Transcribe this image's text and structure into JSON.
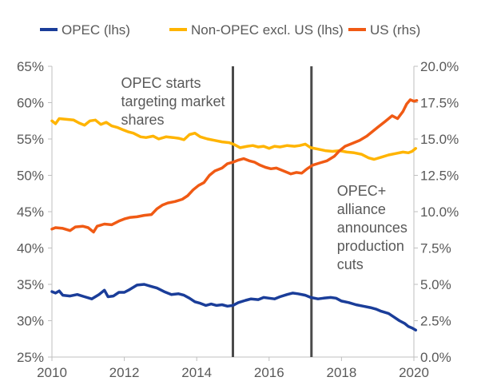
{
  "chart_data": {
    "type": "line",
    "title": "",
    "xlabel": "",
    "ylabel": "",
    "y2label": "",
    "xlim": [
      2010,
      2020
    ],
    "ylim": [
      0.25,
      0.65
    ],
    "y2lim": [
      0.0,
      0.2
    ],
    "grid": false,
    "legend_position": "top",
    "x_ticks": [
      2010,
      2012,
      2014,
      2016,
      2018,
      2020
    ],
    "x_tick_labels": [
      "2010",
      "2012",
      "2014",
      "2016",
      "2018",
      "2020"
    ],
    "y_ticks": [
      0.25,
      0.3,
      0.35,
      0.4,
      0.45,
      0.5,
      0.55,
      0.6,
      0.65
    ],
    "y_tick_labels": [
      "25%",
      "30%",
      "35%",
      "40%",
      "45%",
      "50%",
      "55%",
      "60%",
      "65%"
    ],
    "y2_ticks": [
      0.0,
      0.025,
      0.05,
      0.075,
      0.1,
      0.125,
      0.15,
      0.175,
      0.2
    ],
    "y2_tick_labels": [
      "0.0%",
      "2.5%",
      "5.0%",
      "7.5%",
      "10.0%",
      "12.5%",
      "15.0%",
      "17.5%",
      "20.0%"
    ],
    "vlines": [
      {
        "x": 2015.0,
        "color": "#4a4a4a"
      },
      {
        "x": 2017.17,
        "color": "#4a4a4a"
      }
    ],
    "annotations": [
      {
        "lines": [
          "OPEC starts",
          "targeting market",
          "shares"
        ],
        "anchor_x": 2015.0,
        "side": "left"
      },
      {
        "lines": [
          "OPEC+",
          "alliance",
          "announces",
          "production",
          "cuts"
        ],
        "anchor_x": 2017.17,
        "side": "right"
      }
    ],
    "series": [
      {
        "name": "OPEC (lhs)",
        "color": "#1a3d99",
        "axis": "left",
        "points": [
          [
            2010.0,
            0.34
          ],
          [
            2010.1,
            0.338
          ],
          [
            2010.2,
            0.341
          ],
          [
            2010.3,
            0.335
          ],
          [
            2010.5,
            0.334
          ],
          [
            2010.7,
            0.336
          ],
          [
            2010.9,
            0.333
          ],
          [
            2011.1,
            0.33
          ],
          [
            2011.3,
            0.336
          ],
          [
            2011.45,
            0.342
          ],
          [
            2011.55,
            0.333
          ],
          [
            2011.7,
            0.334
          ],
          [
            2011.85,
            0.339
          ],
          [
            2012.0,
            0.339
          ],
          [
            2012.15,
            0.343
          ],
          [
            2012.35,
            0.349
          ],
          [
            2012.55,
            0.35
          ],
          [
            2012.75,
            0.347
          ],
          [
            2012.9,
            0.345
          ],
          [
            2013.1,
            0.34
          ],
          [
            2013.3,
            0.336
          ],
          [
            2013.5,
            0.337
          ],
          [
            2013.65,
            0.335
          ],
          [
            2013.8,
            0.331
          ],
          [
            2013.95,
            0.326
          ],
          [
            2014.1,
            0.324
          ],
          [
            2014.25,
            0.321
          ],
          [
            2014.4,
            0.323
          ],
          [
            2014.55,
            0.321
          ],
          [
            2014.7,
            0.322
          ],
          [
            2014.85,
            0.32
          ],
          [
            2015.0,
            0.321
          ],
          [
            2015.15,
            0.325
          ],
          [
            2015.35,
            0.328
          ],
          [
            2015.5,
            0.33
          ],
          [
            2015.7,
            0.329
          ],
          [
            2015.85,
            0.332
          ],
          [
            2016.0,
            0.331
          ],
          [
            2016.15,
            0.33
          ],
          [
            2016.3,
            0.333
          ],
          [
            2016.5,
            0.336
          ],
          [
            2016.65,
            0.338
          ],
          [
            2016.8,
            0.337
          ],
          [
            2017.0,
            0.335
          ],
          [
            2017.15,
            0.332
          ],
          [
            2017.35,
            0.33
          ],
          [
            2017.5,
            0.331
          ],
          [
            2017.7,
            0.332
          ],
          [
            2017.85,
            0.331
          ],
          [
            2018.0,
            0.327
          ],
          [
            2018.2,
            0.325
          ],
          [
            2018.4,
            0.322
          ],
          [
            2018.6,
            0.32
          ],
          [
            2018.8,
            0.318
          ],
          [
            2018.95,
            0.316
          ],
          [
            2019.1,
            0.313
          ],
          [
            2019.3,
            0.31
          ],
          [
            2019.45,
            0.305
          ],
          [
            2019.6,
            0.3
          ],
          [
            2019.75,
            0.296
          ],
          [
            2019.85,
            0.292
          ],
          [
            2019.95,
            0.29
          ],
          [
            2020.05,
            0.287
          ]
        ]
      },
      {
        "name": "Non-OPEC excl. US (lhs)",
        "color": "#ffb400",
        "axis": "left",
        "points": [
          [
            2010.0,
            0.575
          ],
          [
            2010.1,
            0.571
          ],
          [
            2010.2,
            0.578
          ],
          [
            2010.4,
            0.577
          ],
          [
            2010.6,
            0.576
          ],
          [
            2010.75,
            0.572
          ],
          [
            2010.9,
            0.569
          ],
          [
            2011.05,
            0.575
          ],
          [
            2011.2,
            0.576
          ],
          [
            2011.35,
            0.57
          ],
          [
            2011.5,
            0.573
          ],
          [
            2011.65,
            0.568
          ],
          [
            2011.8,
            0.566
          ],
          [
            2011.95,
            0.563
          ],
          [
            2012.1,
            0.56
          ],
          [
            2012.25,
            0.558
          ],
          [
            2012.45,
            0.553
          ],
          [
            2012.6,
            0.552
          ],
          [
            2012.8,
            0.554
          ],
          [
            2012.95,
            0.55
          ],
          [
            2013.15,
            0.553
          ],
          [
            2013.35,
            0.552
          ],
          [
            2013.5,
            0.551
          ],
          [
            2013.65,
            0.549
          ],
          [
            2013.8,
            0.556
          ],
          [
            2013.95,
            0.558
          ],
          [
            2014.1,
            0.553
          ],
          [
            2014.3,
            0.55
          ],
          [
            2014.5,
            0.548
          ],
          [
            2014.7,
            0.546
          ],
          [
            2014.9,
            0.545
          ],
          [
            2015.05,
            0.542
          ],
          [
            2015.2,
            0.538
          ],
          [
            2015.4,
            0.54
          ],
          [
            2015.55,
            0.541
          ],
          [
            2015.7,
            0.539
          ],
          [
            2015.85,
            0.54
          ],
          [
            2016.0,
            0.537
          ],
          [
            2016.15,
            0.54
          ],
          [
            2016.3,
            0.539
          ],
          [
            2016.5,
            0.541
          ],
          [
            2016.7,
            0.54
          ],
          [
            2016.85,
            0.541
          ],
          [
            2017.0,
            0.543
          ],
          [
            2017.15,
            0.538
          ],
          [
            2017.35,
            0.536
          ],
          [
            2017.55,
            0.534
          ],
          [
            2017.75,
            0.533
          ],
          [
            2017.95,
            0.534
          ],
          [
            2018.15,
            0.532
          ],
          [
            2018.35,
            0.531
          ],
          [
            2018.55,
            0.529
          ],
          [
            2018.75,
            0.524
          ],
          [
            2018.9,
            0.522
          ],
          [
            2019.1,
            0.525
          ],
          [
            2019.3,
            0.528
          ],
          [
            2019.5,
            0.53
          ],
          [
            2019.7,
            0.532
          ],
          [
            2019.85,
            0.531
          ],
          [
            2019.95,
            0.533
          ],
          [
            2020.05,
            0.537
          ]
        ]
      },
      {
        "name": "US (rhs)",
        "color": "#f05a14",
        "axis": "right",
        "points": [
          [
            2010.0,
            0.088
          ],
          [
            2010.1,
            0.089
          ],
          [
            2010.3,
            0.0885
          ],
          [
            2010.5,
            0.087
          ],
          [
            2010.65,
            0.0895
          ],
          [
            2010.85,
            0.09
          ],
          [
            2011.0,
            0.089
          ],
          [
            2011.15,
            0.086
          ],
          [
            2011.25,
            0.09
          ],
          [
            2011.45,
            0.0915
          ],
          [
            2011.65,
            0.091
          ],
          [
            2011.85,
            0.0935
          ],
          [
            2012.0,
            0.095
          ],
          [
            2012.15,
            0.096
          ],
          [
            2012.35,
            0.0965
          ],
          [
            2012.55,
            0.0975
          ],
          [
            2012.75,
            0.098
          ],
          [
            2012.9,
            0.102
          ],
          [
            2013.05,
            0.1045
          ],
          [
            2013.2,
            0.106
          ],
          [
            2013.4,
            0.107
          ],
          [
            2013.6,
            0.1085
          ],
          [
            2013.75,
            0.111
          ],
          [
            2013.9,
            0.115
          ],
          [
            2014.05,
            0.118
          ],
          [
            2014.2,
            0.12
          ],
          [
            2014.35,
            0.125
          ],
          [
            2014.5,
            0.128
          ],
          [
            2014.7,
            0.13
          ],
          [
            2014.85,
            0.133
          ],
          [
            2015.0,
            0.134
          ],
          [
            2015.15,
            0.1355
          ],
          [
            2015.3,
            0.1365
          ],
          [
            2015.45,
            0.135
          ],
          [
            2015.6,
            0.134
          ],
          [
            2015.75,
            0.132
          ],
          [
            2015.9,
            0.1305
          ],
          [
            2016.05,
            0.1295
          ],
          [
            2016.2,
            0.13
          ],
          [
            2016.4,
            0.128
          ],
          [
            2016.6,
            0.126
          ],
          [
            2016.75,
            0.127
          ],
          [
            2016.9,
            0.1265
          ],
          [
            2017.05,
            0.1295
          ],
          [
            2017.2,
            0.132
          ],
          [
            2017.4,
            0.1335
          ],
          [
            2017.6,
            0.135
          ],
          [
            2017.8,
            0.138
          ],
          [
            2017.95,
            0.142
          ],
          [
            2018.1,
            0.145
          ],
          [
            2018.3,
            0.147
          ],
          [
            2018.5,
            0.149
          ],
          [
            2018.7,
            0.152
          ],
          [
            2018.85,
            0.155
          ],
          [
            2019.0,
            0.158
          ],
          [
            2019.2,
            0.162
          ],
          [
            2019.4,
            0.166
          ],
          [
            2019.55,
            0.164
          ],
          [
            2019.7,
            0.169
          ],
          [
            2019.8,
            0.174
          ],
          [
            2019.9,
            0.177
          ],
          [
            2020.0,
            0.176
          ],
          [
            2020.08,
            0.1765
          ]
        ]
      }
    ]
  }
}
